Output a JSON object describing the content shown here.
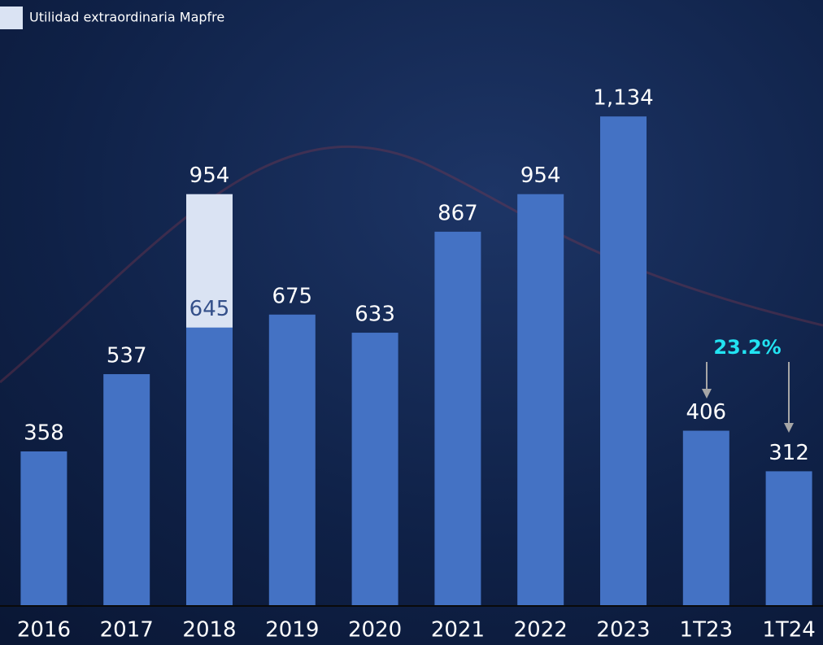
{
  "chart_data": {
    "type": "bar",
    "categories": [
      "2016",
      "2017",
      "2018",
      "2019",
      "2020",
      "2021",
      "2022",
      "2023",
      "1T23",
      "1T24"
    ],
    "series": [
      {
        "name": "Utilidad extraordinaria Mapfre",
        "color": "#dae3f3",
        "values": [
          null,
          null,
          954,
          null,
          null,
          null,
          null,
          null,
          null,
          null
        ]
      },
      {
        "color": "#4472c4",
        "values": [
          358,
          537,
          645,
          675,
          633,
          867,
          954,
          1134,
          406,
          312
        ],
        "value_labels": [
          "358",
          "537",
          "645",
          "675",
          "633",
          "867",
          "954",
          "1,134",
          "406",
          "312"
        ]
      }
    ],
    "annotation": "23.2%",
    "ylim": [
      0,
      1400
    ],
    "legend": "top-left"
  }
}
